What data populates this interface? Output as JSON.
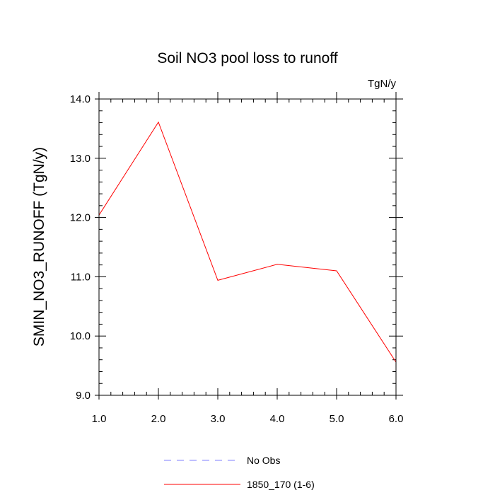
{
  "chart_data": {
    "type": "line",
    "title": "Soil NO3 pool loss to runoff",
    "units_label": "TgN/y",
    "ylabel": "SMIN_NO3_RUNOFF  (TgN/y)",
    "xlabel": "",
    "xlim": [
      1.0,
      6.0
    ],
    "ylim": [
      9.0,
      14.0
    ],
    "x_ticks": [
      1.0,
      2.0,
      3.0,
      4.0,
      5.0,
      6.0
    ],
    "x_tick_labels": [
      "1.0",
      "2.0",
      "3.0",
      "4.0",
      "5.0",
      "6.0"
    ],
    "y_ticks": [
      9.0,
      10.0,
      11.0,
      12.0,
      13.0,
      14.0
    ],
    "y_tick_labels": [
      "9.0",
      "10.0",
      "11.0",
      "12.0",
      "13.0",
      "14.0"
    ],
    "grid": false,
    "legend_placement": "bottom",
    "series": [
      {
        "name": "1850_170 (1-6)",
        "color": "#ff0000",
        "dash": "solid",
        "x": [
          1.0,
          2.0,
          3.0,
          4.0,
          5.0,
          6.0
        ],
        "y": [
          12.04,
          13.61,
          10.94,
          11.21,
          11.1,
          9.56
        ]
      }
    ],
    "legend": [
      {
        "label": "No Obs",
        "color": "#7f7fff",
        "dash": "dashed"
      },
      {
        "label": "1850_170 (1-6)",
        "color": "#ff0000",
        "dash": "solid"
      }
    ]
  }
}
